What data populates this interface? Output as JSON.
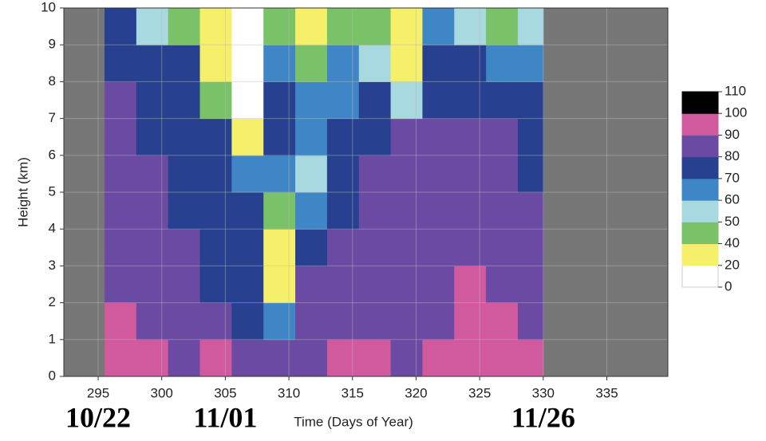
{
  "chart_data": {
    "type": "heatmap",
    "xlabel": "Time (Days of Year)",
    "ylabel": "Height (km)",
    "xlim": [
      292.3,
      339.8
    ],
    "ylim": [
      0,
      10
    ],
    "xticks": [
      295,
      300,
      305,
      310,
      315,
      320,
      325,
      330,
      335
    ],
    "yticks": [
      0,
      1,
      2,
      3,
      4,
      5,
      6,
      7,
      8,
      9,
      10
    ],
    "grid": true,
    "background_color": "#777777",
    "x_edges": [
      295.5,
      298,
      300.5,
      303,
      305.5,
      308,
      310.5,
      313,
      315.5,
      318,
      320.5,
      323,
      325.5,
      328,
      330
    ],
    "y_edges": [
      0,
      1,
      2,
      3,
      4,
      5,
      6,
      7,
      8,
      9,
      10
    ],
    "z": [
      [
        95,
        92,
        88,
        90,
        85,
        80,
        88,
        92,
        90,
        88,
        90,
        92,
        95,
        90
      ],
      [
        90,
        85,
        85,
        80,
        75,
        60,
        85,
        88,
        85,
        85,
        88,
        90,
        92,
        88
      ],
      [
        88,
        85,
        80,
        78,
        70,
        30,
        80,
        85,
        80,
        85,
        88,
        90,
        88,
        85
      ],
      [
        88,
        82,
        80,
        72,
        70,
        25,
        75,
        80,
        82,
        85,
        85,
        88,
        88,
        82
      ],
      [
        85,
        80,
        78,
        75,
        70,
        45,
        65,
        78,
        80,
        82,
        85,
        85,
        86,
        80
      ],
      [
        85,
        80,
        78,
        75,
        65,
        60,
        55,
        75,
        80,
        82,
        82,
        85,
        85,
        78
      ],
      [
        82,
        78,
        75,
        70,
        35,
        75,
        65,
        72,
        78,
        80,
        80,
        82,
        80,
        75
      ],
      [
        80,
        75,
        72,
        45,
        15,
        70,
        60,
        65,
        70,
        55,
        75,
        78,
        75,
        70
      ],
      [
        78,
        72,
        70,
        35,
        15,
        65,
        45,
        60,
        55,
        30,
        70,
        70,
        65,
        65
      ],
      [
        75,
        55,
        45,
        25,
        15,
        40,
        25,
        45,
        40,
        20,
        60,
        55,
        40,
        55
      ]
    ],
    "colorbar": {
      "levels": [
        0,
        20,
        40,
        50,
        60,
        70,
        80,
        90,
        100,
        110
      ],
      "colors": [
        "#ffffff",
        "#f5ef6a",
        "#79c267",
        "#a8d8e0",
        "#3f86c6",
        "#27408f",
        "#6a4aa3",
        "#d15a9f",
        "#000000"
      ]
    },
    "annotations": [
      {
        "x": 295,
        "text": "10/22"
      },
      {
        "x": 305,
        "text": "11/01"
      },
      {
        "x": 330,
        "text": "11/26"
      }
    ]
  }
}
